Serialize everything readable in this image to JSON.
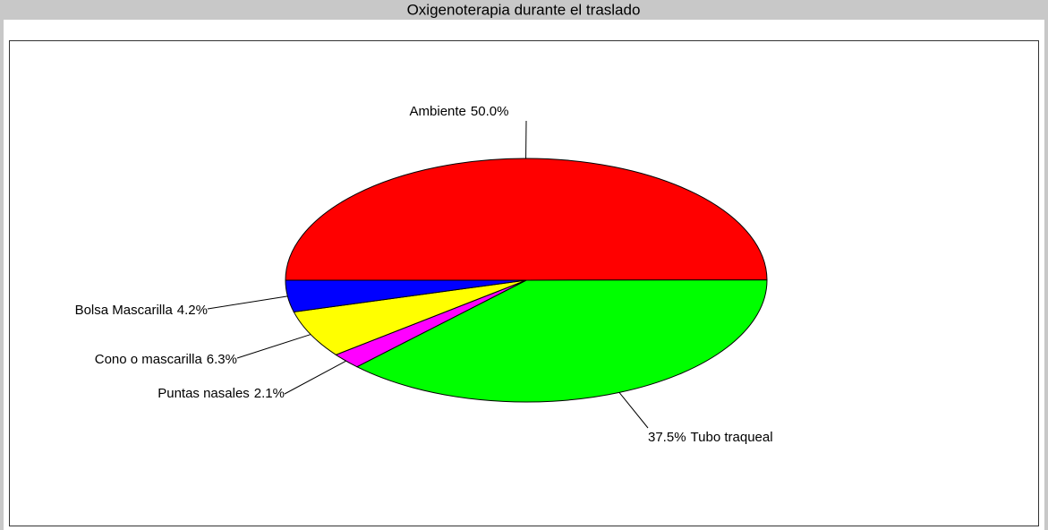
{
  "chart_data": {
    "type": "pie",
    "title": "Oxigenoterapia durante el traslado",
    "categories": [
      "Ambiente",
      "Tubo traqueal",
      "Puntas nasales",
      "Cono o mascarilla",
      "Bolsa Mascarilla"
    ],
    "values": [
      50.0,
      37.5,
      2.1,
      6.3,
      4.2
    ],
    "value_labels": [
      "50.0%",
      "37.5%",
      "2.1%",
      "6.3%",
      "4.2%"
    ],
    "colors": [
      "#ff0000",
      "#00ff00",
      "#ff00ff",
      "#ffff00",
      "#0000ff"
    ]
  }
}
